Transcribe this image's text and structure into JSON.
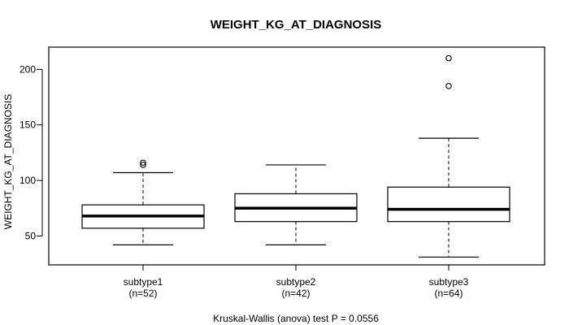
{
  "chart_data": {
    "type": "boxplot",
    "title": "WEIGHT_KG_AT_DIAGNOSIS",
    "ylabel": "WEIGHT_KG_AT_DIAGNOSIS",
    "footer": "Kruskal-Wallis (anova) test P = 0.0556",
    "ylim": [
      24,
      220
    ],
    "yticks": [
      50,
      100,
      150,
      200
    ],
    "groups": [
      {
        "name": "subtype1",
        "n_label": "(n=52)",
        "min": 42,
        "q1": 57,
        "median": 68,
        "q3": 78,
        "max": 107,
        "outliers": [
          114,
          116
        ]
      },
      {
        "name": "subtype2",
        "n_label": "(n=42)",
        "min": 42,
        "q1": 63,
        "median": 75,
        "q3": 88,
        "max": 114,
        "outliers": []
      },
      {
        "name": "subtype3",
        "n_label": "(n=64)",
        "min": 31,
        "q1": 63,
        "median": 74,
        "q3": 94,
        "max": 138,
        "outliers": [
          185,
          210
        ]
      }
    ]
  }
}
